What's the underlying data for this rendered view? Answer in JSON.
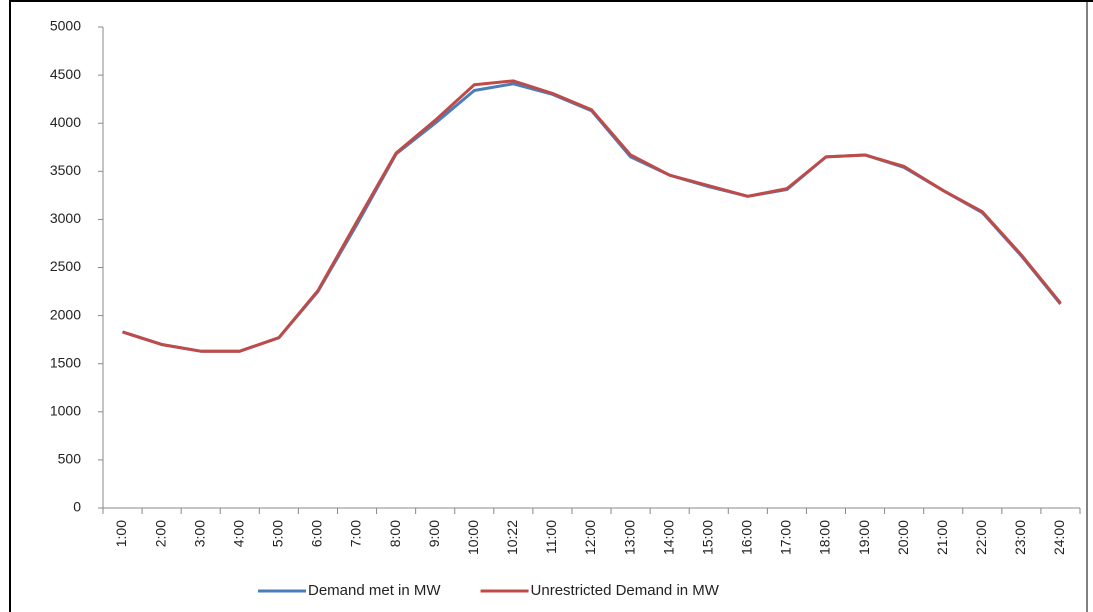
{
  "chart_data": {
    "type": "line",
    "categories": [
      "1:00",
      "2:00",
      "3:00",
      "4:00",
      "5:00",
      "6:00",
      "7:00",
      "8:00",
      "9:00",
      "10:00",
      "10:22",
      "11:00",
      "12:00",
      "13:00",
      "14:00",
      "15:00",
      "16:00",
      "17:00",
      "18:00",
      "19:00",
      "20:00",
      "21:00",
      "22:00",
      "23:00",
      "24:00"
    ],
    "series": [
      {
        "name": "Demand met in MW",
        "color": "#4a7ebb",
        "values": [
          1830,
          1700,
          1630,
          1630,
          1770,
          2250,
          2950,
          3680,
          4000,
          4340,
          4410,
          4300,
          4130,
          3650,
          3460,
          3340,
          3240,
          3310,
          3650,
          3670,
          3540,
          3300,
          3070,
          2620,
          2120
        ]
      },
      {
        "name": "Unrestricted Demand in MW",
        "color": "#be4b48",
        "values": [
          1830,
          1700,
          1630,
          1630,
          1770,
          2260,
          2980,
          3690,
          4030,
          4400,
          4440,
          4310,
          4140,
          3670,
          3460,
          3350,
          3240,
          3320,
          3650,
          3670,
          3550,
          3300,
          3080,
          2630,
          2130
        ]
      }
    ],
    "ylim": [
      0,
      5000
    ],
    "yticks": [
      0,
      500,
      1000,
      1500,
      2000,
      2500,
      3000,
      3500,
      4000,
      4500,
      5000
    ],
    "legend": "bottom"
  }
}
